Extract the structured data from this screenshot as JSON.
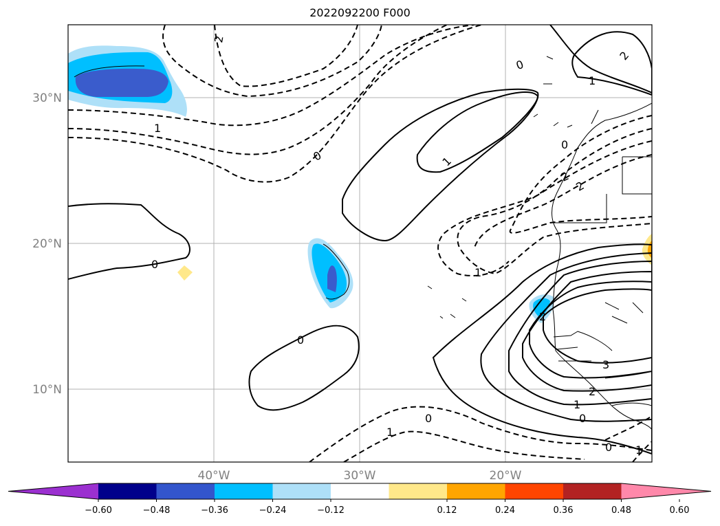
{
  "title": "2022092200 F000",
  "map": {
    "lat_labels": [
      "30°N",
      "20°N",
      "10°N"
    ],
    "lon_labels": [
      "40°W",
      "30°W",
      "20°W"
    ],
    "contour_labels": [
      "2",
      "1",
      "0",
      "0",
      "1",
      "2",
      "1",
      "0",
      "2",
      "0",
      "0",
      "1",
      "2",
      "1",
      "3",
      "2",
      "1",
      "0",
      "0",
      "1",
      "2",
      "0"
    ]
  },
  "colorbar": {
    "ticks": [
      "−0.60",
      "−0.48",
      "−0.36",
      "−0.24",
      "−0.12",
      "0.12",
      "0.24",
      "0.36",
      "0.48",
      "0.60"
    ],
    "colors": [
      "#9b30d0",
      "#00008b",
      "#3355cc",
      "#00bfff",
      "#aee0f8",
      "#ffffff",
      "#ffe88a",
      "#ffa500",
      "#ff4500",
      "#b22222",
      "#ff88aa"
    ]
  }
}
